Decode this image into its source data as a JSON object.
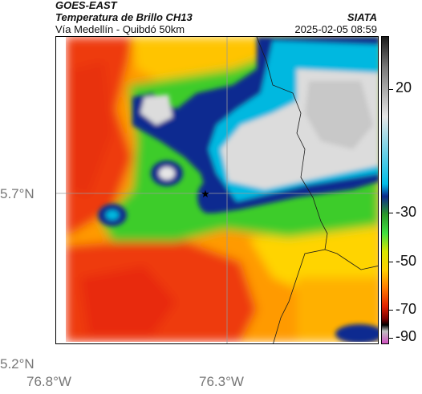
{
  "header": {
    "satellite": "GOES-EAST",
    "product": "Temperatura de Brillo CH13",
    "region": "Vía Medellín - Quibdó 50km",
    "brand": "SIATA",
    "datetime": "2025-02-05 08:59"
  },
  "axes": {
    "lat_labels": [
      "5.7°N",
      "5.2°N"
    ],
    "lon_labels": [
      "76.8°W",
      "76.3°W"
    ]
  },
  "colorbar": {
    "ticks": [
      "20",
      "-30",
      "-50",
      "-70",
      "-90"
    ],
    "colors": [
      "#1a1a1a",
      "#7a7a7a",
      "#e6e6e6",
      "#00bde6",
      "#0d2a8c",
      "#2a9a2a",
      "#40e040",
      "#d8e600",
      "#ffd000",
      "#ff7a00",
      "#e02000",
      "#7a0000",
      "#000000",
      "#c0c0c0",
      "#d050c0"
    ]
  },
  "map": {
    "marker_icon": "star-icon",
    "scale_hint": "brightness-temperature"
  }
}
